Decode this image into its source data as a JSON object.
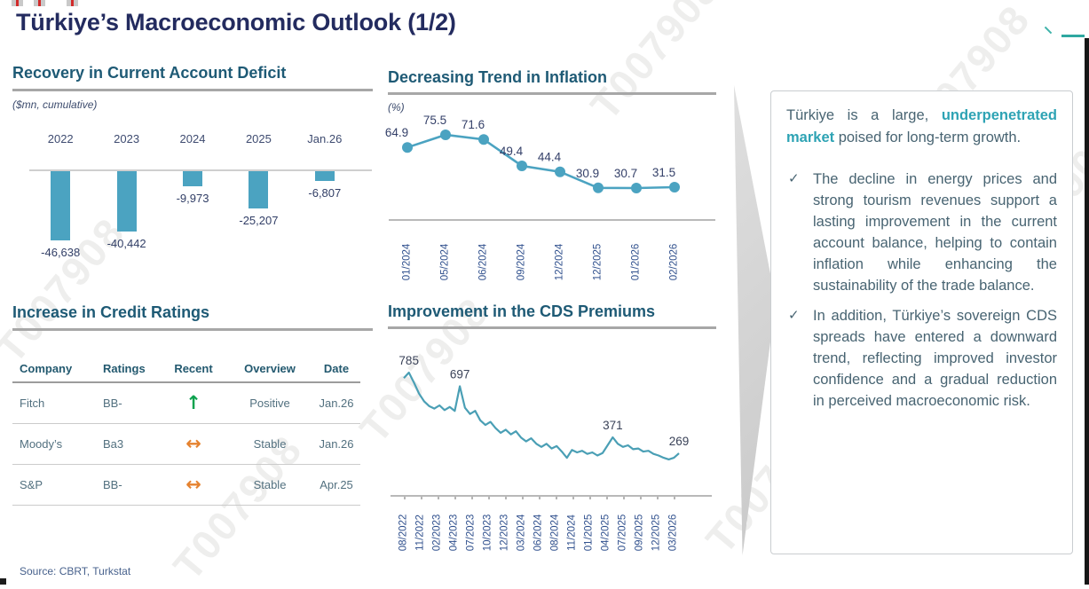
{
  "page": {
    "title": "Türkiye’s Macroeconomic Outlook (1/2)",
    "source": "Source: CBRT, Turkstat"
  },
  "colors": {
    "chart_teal": "#4BA3C1",
    "highlight_teal": "#2EA3B4",
    "title_navy": "#232B5F",
    "section_header": "#1E5A75",
    "up_arrow_green": "#0CA24E",
    "flat_arrow_orange": "#E5822F"
  },
  "sections": {
    "current_account": {
      "title": "Recovery in Current Account Deficit",
      "unit": "($mn, cumulative)"
    },
    "inflation": {
      "title": "Decreasing Trend in Inflation",
      "unit": "(%)"
    },
    "ratings": {
      "title": "Increase in Credit Ratings"
    },
    "cds": {
      "title": "Improvement in the CDS Premiums"
    }
  },
  "chart_data": [
    {
      "type": "bar",
      "title": "Recovery in Current Account Deficit",
      "ylabel": "($mn, cumulative)",
      "categories": [
        "2022",
        "2023",
        "2024",
        "2025",
        "Jan.26"
      ],
      "values": [
        -46638,
        -40442,
        -9973,
        -25207,
        -6807
      ],
      "value_labels": [
        "-46,638",
        "-40,442",
        "-9,973",
        "-25,207",
        "-6,807"
      ],
      "ylim": [
        -50000,
        0
      ],
      "grid": false
    },
    {
      "type": "line",
      "title": "Decreasing Trend in Inflation",
      "ylabel": "(%)",
      "categories": [
        "01/2024",
        "05/2024",
        "06/2024",
        "09/2024",
        "12/2024",
        "12/2025",
        "01/2026",
        "02/2026"
      ],
      "values": [
        64.9,
        75.5,
        71.6,
        49.4,
        44.4,
        30.9,
        30.7,
        31.5
      ],
      "markers": true,
      "grid": false
    },
    {
      "type": "line",
      "title": "Improvement in the CDS Premiums",
      "categories": [
        "08/2022",
        "11/2022",
        "02/2023",
        "04/2023",
        "07/2023",
        "10/2023",
        "12/2023",
        "03/2024",
        "06/2024",
        "08/2024",
        "11/2024",
        "01/2025",
        "04/2025",
        "07/2025",
        "09/2025",
        "12/2025",
        "03/2026"
      ],
      "values": [
        750,
        785,
        720,
        650,
        600,
        570,
        555,
        575,
        545,
        565,
        540,
        697,
        560,
        520,
        540,
        480,
        450,
        470,
        430,
        400,
        420,
        390,
        410,
        370,
        345,
        365,
        330,
        310,
        330,
        300,
        315,
        280,
        240,
        290,
        275,
        285,
        265,
        275,
        255,
        270,
        320,
        371,
        330,
        310,
        320,
        295,
        300,
        280,
        285,
        265,
        255,
        240,
        230,
        240,
        269
      ],
      "annotations": [
        {
          "label": "785",
          "index": 1
        },
        {
          "label": "697",
          "index": 11
        },
        {
          "label": "371",
          "index": 41
        },
        {
          "label": "269",
          "index": 54
        }
      ],
      "grid": false
    }
  ],
  "ratings_table": {
    "columns": [
      "Company",
      "Ratings",
      "Recent",
      "Overview",
      "Date"
    ],
    "rows": [
      {
        "company": "Fitch",
        "rating": "BB-",
        "trend": "up",
        "overview": "Positive",
        "date": "Jan.26"
      },
      {
        "company": "Moody’s",
        "rating": "Ba3",
        "trend": "flat",
        "overview": "Stable",
        "date": "Jan.26"
      },
      {
        "company": "S&P",
        "rating": "BB-",
        "trend": "flat",
        "overview": "Stable",
        "date": "Apr.25"
      }
    ]
  },
  "panel": {
    "intro_prefix": "Türkiye is a large, ",
    "intro_highlight": "underpenetrated market",
    "intro_suffix": " poised for long-term growth.",
    "bullets": [
      "The decline in energy prices and strong tourism revenues support a lasting improvement in the current account balance, helping to contain inflation while enhancing the sustainability of the trade balance.",
      "In addition, Türkiye’s sovereign CDS spreads have entered a downward trend, reflecting improved investor confidence and a gradual reduction in perceived macroeconomic risk."
    ]
  },
  "icons": {
    "up_arrow": "↑",
    "flat_arrow": "↔",
    "checkmark": "✓"
  },
  "watermark": {
    "text": "T007908"
  }
}
